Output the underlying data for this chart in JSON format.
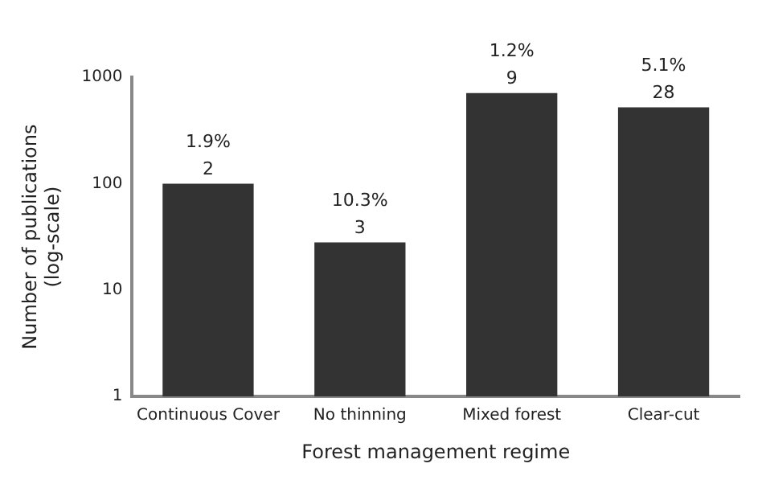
{
  "chart_data": {
    "type": "bar",
    "xlabel": "Forest management regime",
    "ylabel": "Number of publications\n(log-scale)",
    "categories": [
      "Continuous Cover",
      "No thinning",
      "Mixed forest",
      "Clear-cut"
    ],
    "values": [
      100,
      28,
      710,
      520
    ],
    "color": "#333333",
    "log": true,
    "ylim": [
      1,
      1000
    ],
    "yticks": [
      1,
      10,
      100,
      1000
    ],
    "grid": false,
    "legend": false,
    "annotations": [
      "2",
      "1.9%",
      "3",
      "10.3%",
      "9",
      "1.2%",
      "28",
      "5.1%"
    ]
  }
}
